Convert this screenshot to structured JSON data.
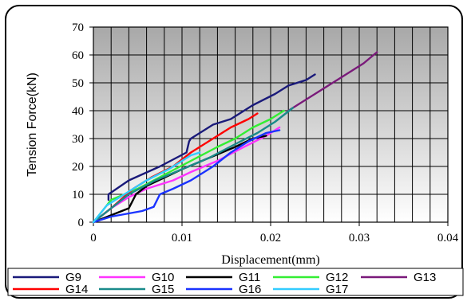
{
  "chart_data": {
    "type": "line",
    "title": "",
    "xlabel": "Displacement(mm)",
    "ylabel": "Tension Force(kN)",
    "xlim": [
      0,
      0.04
    ],
    "ylim": [
      0,
      70
    ],
    "x_ticks": [
      "0",
      "0.01",
      "0.02",
      "0.03",
      "0.04"
    ],
    "y_ticks": [
      "0",
      "10",
      "20",
      "30",
      "40",
      "50",
      "60",
      "70"
    ],
    "x_tick_values": [
      0,
      0.01,
      0.02,
      0.03,
      0.04
    ],
    "y_tick_values": [
      0,
      10,
      20,
      30,
      40,
      50,
      60,
      70
    ],
    "grid": true,
    "legend_position": "bottom",
    "series": [
      {
        "name": "G9",
        "color": "#1a1a7a",
        "points": [
          [
            0.0017,
            8
          ],
          [
            0.0017,
            10
          ],
          [
            0.004,
            15
          ],
          [
            0.0075,
            20
          ],
          [
            0.0105,
            25
          ],
          [
            0.0108,
            29
          ],
          [
            0.011,
            30
          ],
          [
            0.0135,
            35
          ],
          [
            0.0155,
            37
          ],
          [
            0.018,
            42
          ],
          [
            0.0205,
            46
          ],
          [
            0.022,
            49
          ],
          [
            0.024,
            51
          ],
          [
            0.025,
            53
          ]
        ]
      },
      {
        "name": "G10",
        "color": "#ff33ff",
        "points": [
          [
            0,
            0
          ],
          [
            0.002,
            5
          ],
          [
            0.004,
            9
          ],
          [
            0.006,
            12
          ],
          [
            0.009,
            15
          ],
          [
            0.011,
            18
          ],
          [
            0.014,
            22
          ],
          [
            0.017,
            27
          ],
          [
            0.0195,
            31
          ],
          [
            0.021,
            34
          ]
        ]
      },
      {
        "name": "G11",
        "color": "#000000",
        "points": [
          [
            0,
            0
          ],
          [
            0.004,
            5
          ],
          [
            0.0048,
            10
          ],
          [
            0.006,
            13
          ],
          [
            0.008,
            16
          ],
          [
            0.01,
            19
          ],
          [
            0.013,
            23
          ],
          [
            0.016,
            27
          ],
          [
            0.018,
            30
          ],
          [
            0.0195,
            31
          ]
        ]
      },
      {
        "name": "G12",
        "color": "#33ee33",
        "points": [
          [
            0,
            0
          ],
          [
            0.002,
            8
          ],
          [
            0.005,
            12
          ],
          [
            0.008,
            17
          ],
          [
            0.011,
            22
          ],
          [
            0.014,
            27
          ],
          [
            0.016,
            30
          ],
          [
            0.018,
            34
          ],
          [
            0.02,
            37
          ],
          [
            0.0215,
            40
          ]
        ]
      },
      {
        "name": "G13",
        "color": "#7a1a7a",
        "points": [
          [
            0.022,
            40
          ],
          [
            0.025,
            46
          ],
          [
            0.028,
            52
          ],
          [
            0.0305,
            57
          ],
          [
            0.032,
            61
          ]
        ]
      },
      {
        "name": "G14",
        "color": "#ff0000",
        "points": [
          [
            0,
            0
          ],
          [
            0.002,
            5
          ],
          [
            0.0045,
            12
          ],
          [
            0.0065,
            16
          ],
          [
            0.009,
            20
          ],
          [
            0.011,
            25
          ],
          [
            0.0135,
            30
          ],
          [
            0.0155,
            34
          ],
          [
            0.0175,
            37
          ],
          [
            0.0185,
            39
          ]
        ]
      },
      {
        "name": "G15",
        "color": "#1a8a8a",
        "points": [
          [
            0,
            0
          ],
          [
            0.004,
            10
          ],
          [
            0.007,
            15
          ],
          [
            0.01,
            19
          ],
          [
            0.013,
            23
          ],
          [
            0.016,
            28
          ],
          [
            0.0185,
            32
          ],
          [
            0.0205,
            36
          ],
          [
            0.0225,
            41
          ]
        ]
      },
      {
        "name": "G16",
        "color": "#1a33ff",
        "points": [
          [
            0,
            0
          ],
          [
            0.002,
            2
          ],
          [
            0.0055,
            4
          ],
          [
            0.0068,
            5.5
          ],
          [
            0.0075,
            10
          ],
          [
            0.009,
            12
          ],
          [
            0.011,
            15
          ],
          [
            0.0135,
            20
          ],
          [
            0.0155,
            25
          ],
          [
            0.0175,
            29
          ],
          [
            0.0195,
            32
          ],
          [
            0.021,
            33
          ]
        ]
      },
      {
        "name": "G17",
        "color": "#33ccff",
        "points": [
          [
            0,
            0
          ],
          [
            0.0015,
            6
          ],
          [
            0.0035,
            10
          ],
          [
            0.006,
            15
          ],
          [
            0.0085,
            19
          ],
          [
            0.011,
            24
          ],
          [
            0.012,
            25
          ]
        ]
      }
    ]
  }
}
